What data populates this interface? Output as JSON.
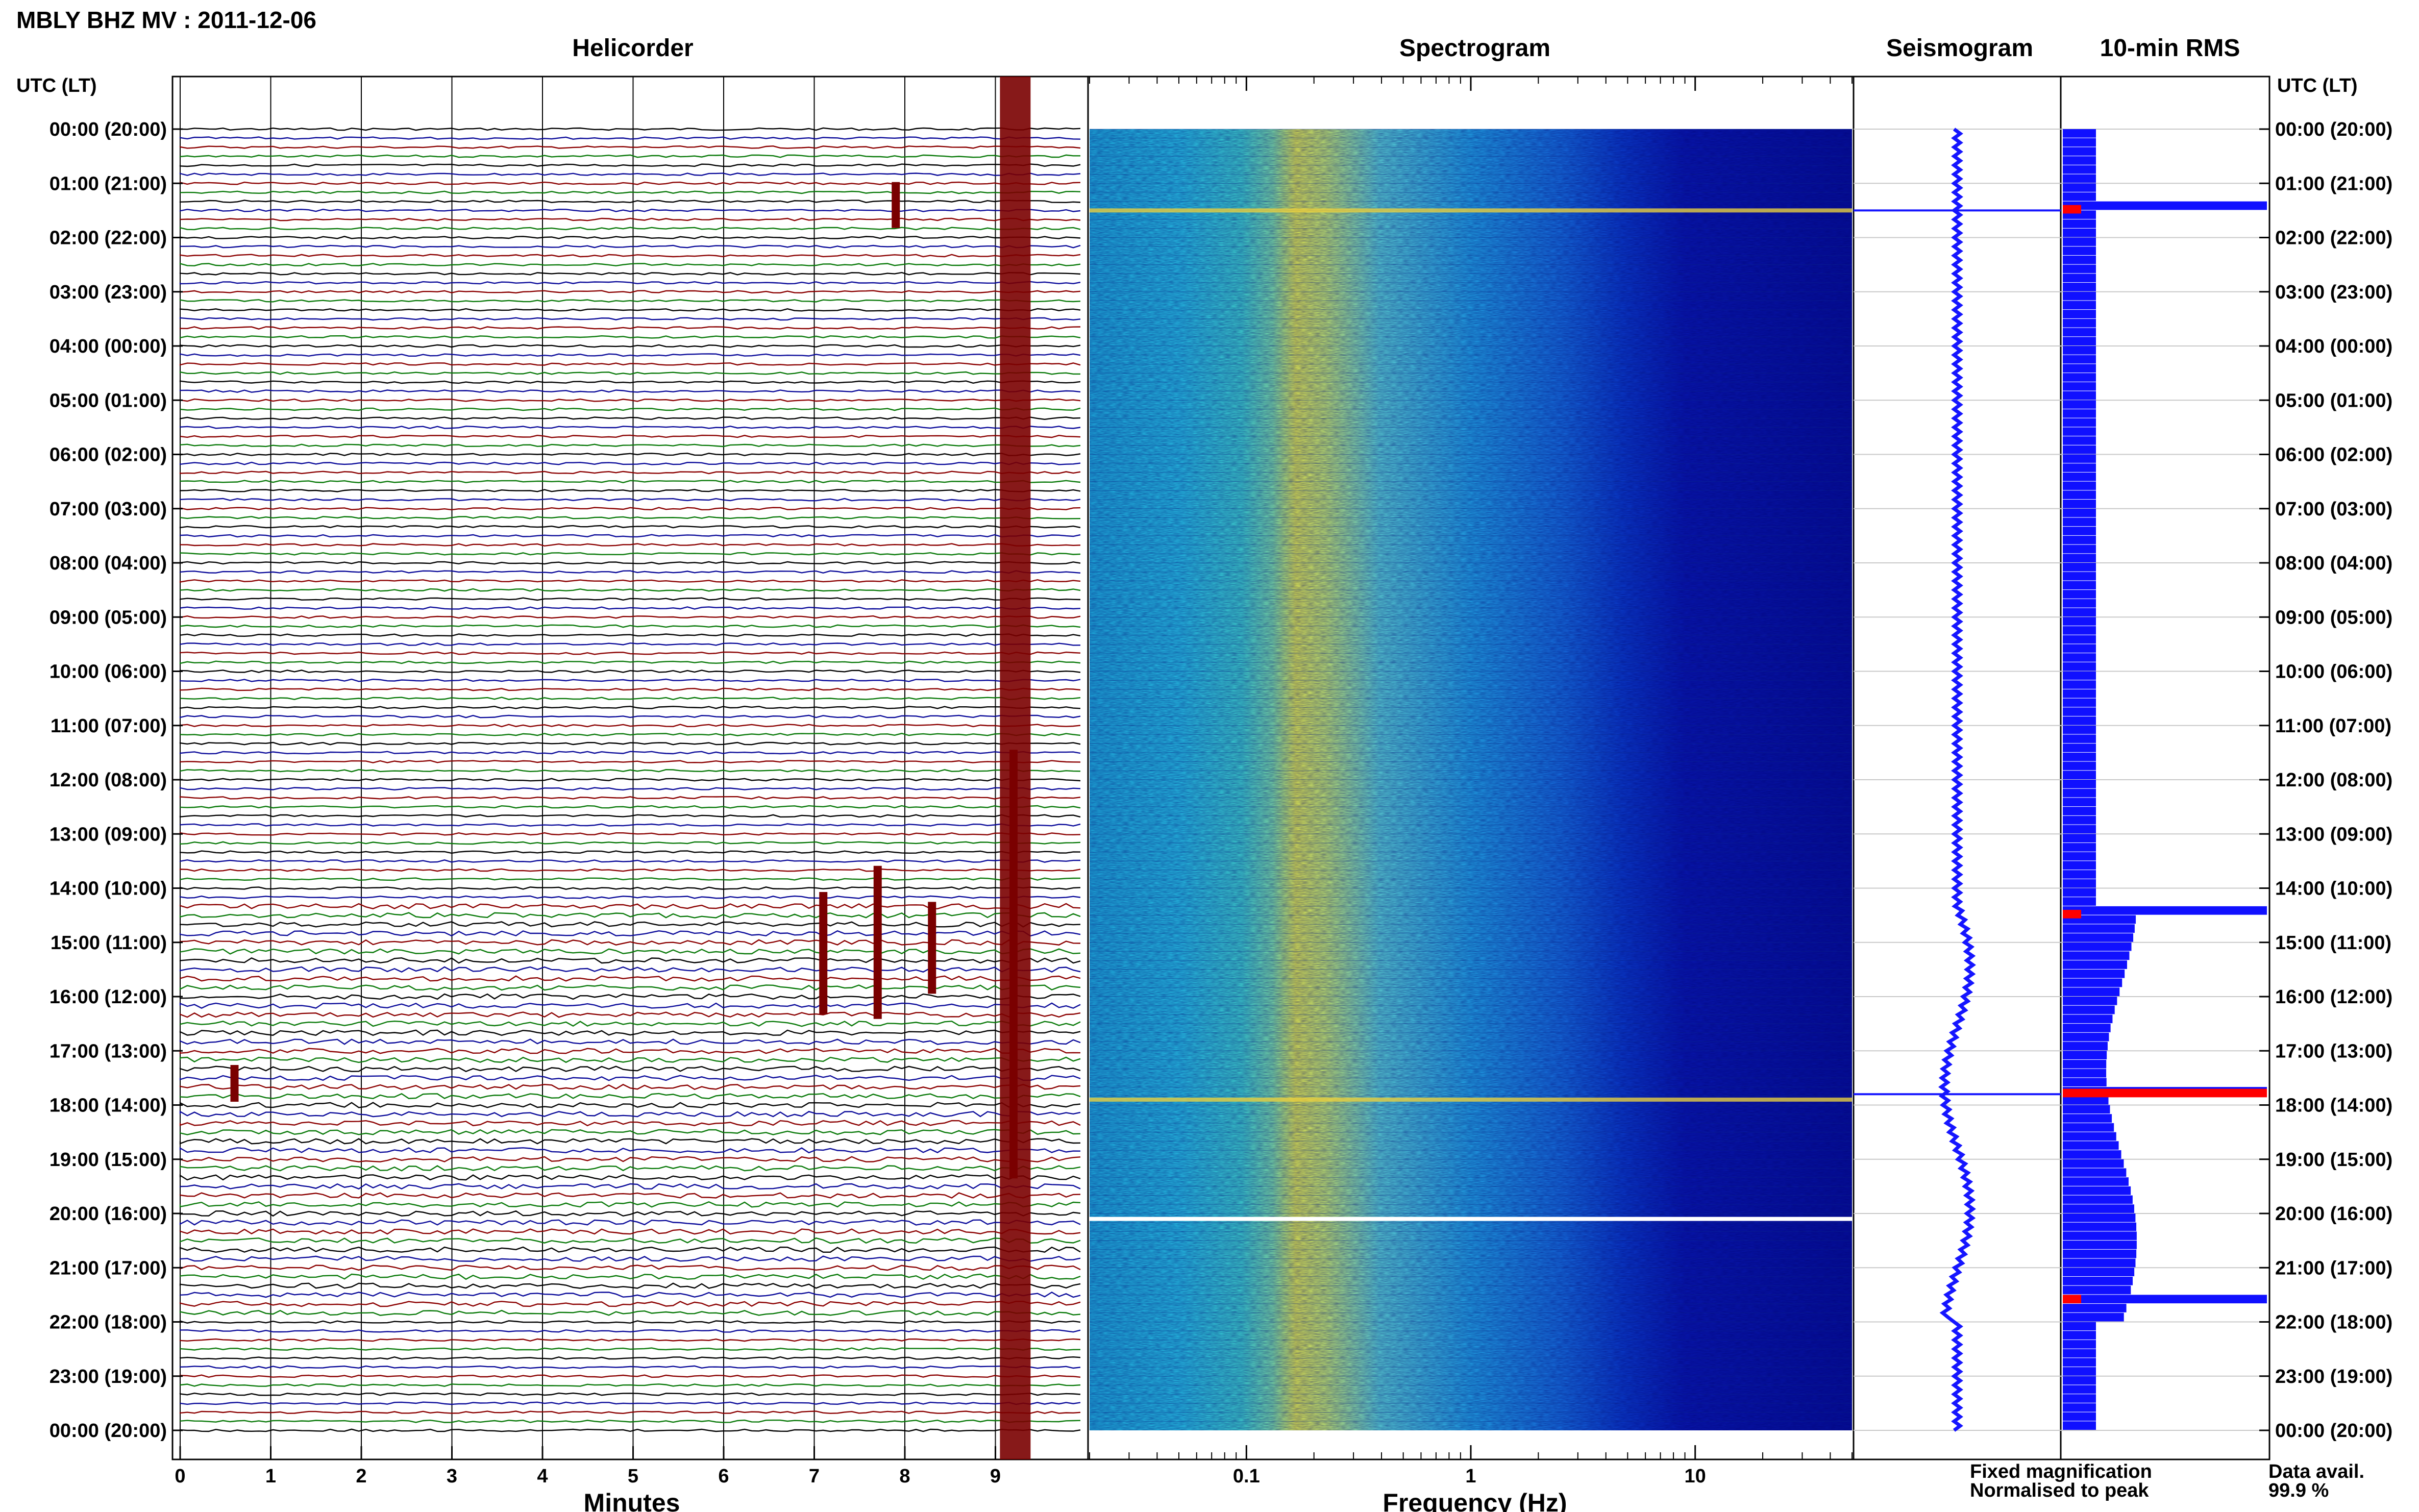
{
  "header": {
    "title": "MBLY BHZ MV : 2011-12-06"
  },
  "panels": {
    "helicorder": {
      "title": "Helicorder",
      "xlabel": "Minutes"
    },
    "spectrogram": {
      "title": "Spectrogram",
      "xlabel": "Frequency (Hz)"
    },
    "seismogram": {
      "title": "Seismogram"
    },
    "rms": {
      "title": "10-min RMS"
    }
  },
  "axis": {
    "left_label": "UTC (LT)",
    "right_label": "UTC (LT)"
  },
  "legend": {
    "fixed": "Fixed magnification",
    "normalised": "Normalised to peak",
    "fixed_color": "#1515ff",
    "normalised_color": "#ff1a1a"
  },
  "availability": {
    "label": "Data avail.",
    "value": "99.9 %"
  },
  "colors": {
    "trace_cycle": [
      "#000000",
      "#0b0b9a",
      "#8b0000",
      "#0a7a0a"
    ],
    "rms_bar": "#1010ff",
    "marker": "#ff0000",
    "event": "#7a0000"
  },
  "chart_data": [
    {
      "type": "line",
      "title": "Helicorder",
      "xlabel": "Minutes",
      "xlim": [
        0,
        10
      ],
      "x_ticks": [
        "0",
        "1",
        "2",
        "3",
        "4",
        "5",
        "6",
        "7",
        "8",
        "9"
      ],
      "time_ticks": [
        "00:00 (20:00)",
        "01:00 (21:00)",
        "02:00 (22:00)",
        "03:00 (23:00)",
        "04:00 (00:00)",
        "05:00 (01:00)",
        "06:00 (02:00)",
        "07:00 (03:00)",
        "08:00 (04:00)",
        "09:00 (05:00)",
        "10:00 (06:00)",
        "11:00 (07:00)",
        "12:00 (08:00)",
        "13:00 (09:00)",
        "14:00 (10:00)",
        "15:00 (11:00)",
        "16:00 (12:00)",
        "17:00 (13:00)",
        "18:00 (14:00)",
        "19:00 (15:00)",
        "20:00 (16:00)",
        "21:00 (17:00)",
        "22:00 (18:00)",
        "23:00 (19:00)",
        "00:00 (20:00)"
      ],
      "traces_per_hour": 6,
      "events": [
        {
          "time_hr": 1.4,
          "minute": 7.9,
          "amp": 1.5
        },
        {
          "time_hr": 15.2,
          "minute": 7.1,
          "amp": 4.0
        },
        {
          "time_hr": 15.0,
          "minute": 7.7,
          "amp": 5.0
        },
        {
          "time_hr": 15.1,
          "minute": 8.3,
          "amp": 3.0
        },
        {
          "time_hr": 15.4,
          "minute": 9.2,
          "amp": 14.0
        },
        {
          "time_hr": 17.6,
          "minute": 0.6,
          "amp": 1.2
        }
      ]
    },
    {
      "type": "heatmap",
      "title": "Spectrogram",
      "xlabel": "Frequency (Hz)",
      "xscale": "log",
      "xlim": [
        0.02,
        50
      ],
      "x_ticks": [
        "0.1",
        "1",
        "10"
      ],
      "peak_band_hz": [
        0.17,
        0.3
      ],
      "bright_rows_hr": [
        1.5,
        17.9
      ]
    },
    {
      "type": "line",
      "title": "Seismogram",
      "legend": "none"
    },
    {
      "type": "bar",
      "title": "10-min RMS",
      "orientation": "horizontal",
      "peaks_hr": [
        1.4,
        14.4,
        17.7,
        21.5
      ],
      "normalised_marks_hr": [
        1.4,
        14.4,
        17.7,
        21.5
      ]
    }
  ]
}
